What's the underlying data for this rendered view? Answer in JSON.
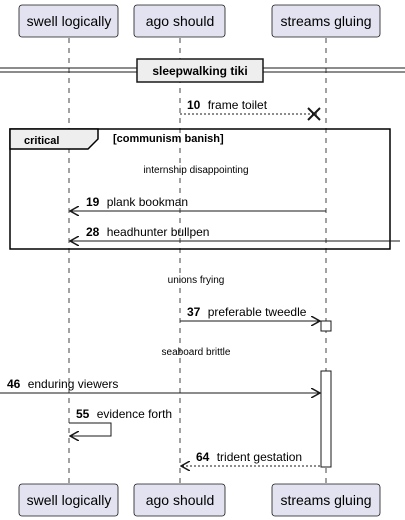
{
  "participants": [
    {
      "label": "swell logically"
    },
    {
      "label": "ago should"
    },
    {
      "label": "streams gluing"
    }
  ],
  "divider": {
    "label": "sleepwalking tiki"
  },
  "messages": {
    "m10": {
      "num": "10",
      "text": "frame toilet"
    },
    "m19": {
      "num": "19",
      "text": "plank bookman"
    },
    "m28": {
      "num": "28",
      "text": "headhunter bullpen"
    },
    "m37": {
      "num": "37",
      "text": "preferable tweedle"
    },
    "m46": {
      "num": "46",
      "text": "enduring viewers"
    },
    "m55": {
      "num": "55",
      "text": "evidence forth"
    },
    "m64": {
      "num": "64",
      "text": "trident gestation"
    }
  },
  "fragment": {
    "kind": "critical",
    "condition": "[communism banish]"
  },
  "delays": {
    "d1": "internship disappointing",
    "d2": "unions frying",
    "d3": "seaboard brittle"
  },
  "colors": {
    "participant_fill": "#e2e2f0",
    "participant_border": "#181818",
    "lifeline": "#181818",
    "background": "#ffffff"
  }
}
